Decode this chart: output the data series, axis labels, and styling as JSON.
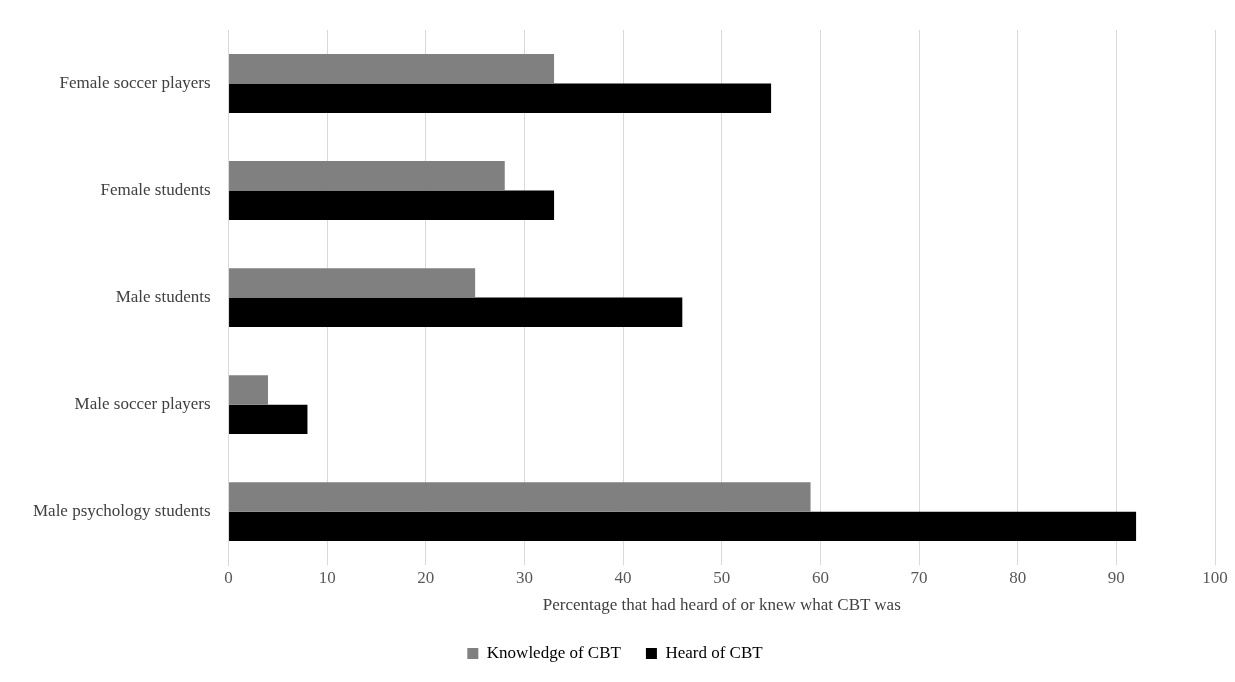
{
  "chart_data": {
    "type": "bar",
    "orientation": "horizontal",
    "xlabel": "Percentage that had heard of or knew what CBT was",
    "categories": [
      "Female soccer players",
      "Female students",
      "Male students",
      "Male soccer players",
      "Male psychology students"
    ],
    "series": [
      {
        "name": "Knowledge of CBT",
        "color": "#808080",
        "values": [
          33,
          28,
          25,
          4,
          59
        ]
      },
      {
        "name": "Heard of CBT",
        "color": "#000000",
        "values": [
          55,
          33,
          46,
          8,
          92
        ]
      }
    ],
    "xlim": [
      0,
      100
    ],
    "xticks": [
      0,
      10,
      20,
      30,
      40,
      50,
      60,
      70,
      80,
      90,
      100
    ],
    "grid": "x",
    "legend": "bottom"
  }
}
